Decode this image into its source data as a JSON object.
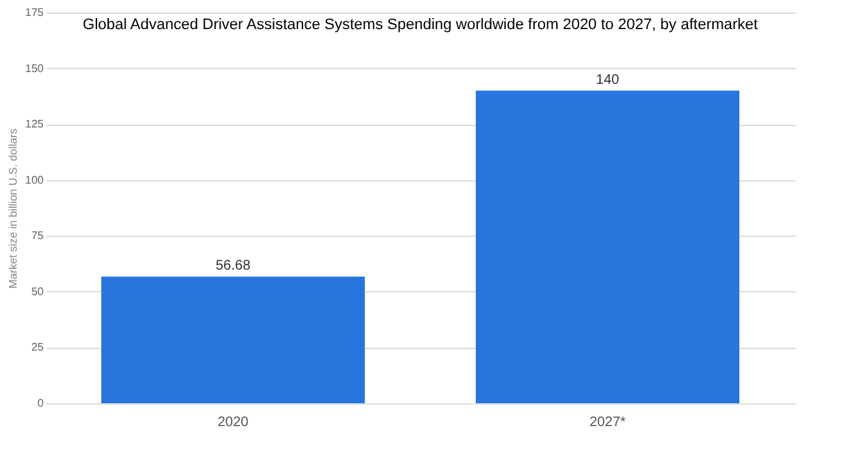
{
  "chart_data": {
    "type": "bar",
    "title": "Global Advanced Driver Assistance Systems Spending worldwide from 2020 to 2027, by aftermarket",
    "ylabel": "Market size in billion U.S. dollars",
    "categories": [
      "2020",
      "2027*"
    ],
    "values": [
      56.68,
      140
    ],
    "color": "#2876dd",
    "ylim": [
      0,
      175
    ],
    "yticks": [
      0,
      25,
      50,
      75,
      100,
      125,
      150,
      175
    ],
    "grid": "y",
    "data_labels": true
  }
}
